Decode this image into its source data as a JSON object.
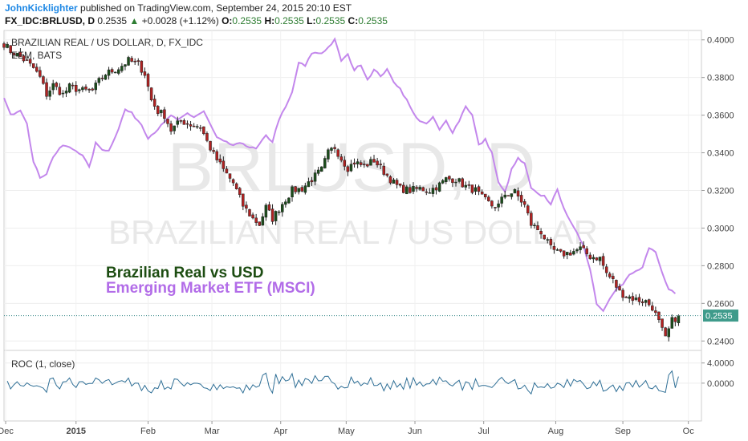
{
  "header": {
    "author": "JohnKicklighter",
    "published": "published on TradingView.com, September 24, 2015 20:10 EST",
    "symbol": "FX_IDC:BRLUSD, D",
    "last": "0.2535",
    "arrow": "▲",
    "change": "+0.0028 (+1.12%)",
    "o_label": "O:",
    "o_value": "0.2535",
    "h_label": "H:",
    "h_value": "0.2535",
    "l_label": "L:",
    "l_value": "0.2535",
    "c_label": "C:",
    "c_value": "0.2535"
  },
  "chart_data": [
    {
      "type": "candlestick",
      "title": "BRAZILIAN REAL / US DOLLAR, D, FX_IDC",
      "overlay_legend": "EEM, BATS",
      "watermark_line1": "BRLUSD, D",
      "watermark_line2": "BRAZILIAN REAL / US DOLLAR",
      "annotation_1": "Brazilian Real vs USD",
      "annotation_2": "Emerging Market ETF (MSCI)",
      "colors": {
        "brl": "#1b4d1b",
        "eem": "#c387ec",
        "up": "#2e7d32",
        "down": "#b22222"
      },
      "ylim": [
        0.235,
        0.405
      ],
      "y_ticks": [
        "0.4000",
        "0.3800",
        "0.3600",
        "0.3400",
        "0.3200",
        "0.3000",
        "0.2800",
        "0.2600",
        "0.2400"
      ],
      "last_price_label": "0.2535",
      "last_price": 0.2535,
      "x_ticks": [
        "Dec",
        "2015",
        "Feb",
        "Mar",
        "Apr",
        "May",
        "Jun",
        "Jul",
        "Aug",
        "Sep",
        "Oc"
      ],
      "x_tick_pos": [
        0.5,
        22,
        44,
        63.5,
        84.5,
        104.5,
        125.5,
        146.5,
        168.5,
        189,
        209
      ],
      "x_range": [
        0,
        213
      ],
      "n_bars": 207,
      "brl_anchors": [
        [
          0,
          0.398
        ],
        [
          2,
          0.394
        ],
        [
          5,
          0.391
        ],
        [
          9,
          0.385
        ],
        [
          11,
          0.38
        ],
        [
          13,
          0.371
        ],
        [
          15,
          0.376
        ],
        [
          18,
          0.371
        ],
        [
          20,
          0.375
        ],
        [
          24,
          0.373
        ],
        [
          27,
          0.373
        ],
        [
          29,
          0.378
        ],
        [
          31,
          0.382
        ],
        [
          35,
          0.385
        ],
        [
          38,
          0.389
        ],
        [
          41,
          0.387
        ],
        [
          43,
          0.382
        ],
        [
          45,
          0.368
        ],
        [
          47,
          0.362
        ],
        [
          49,
          0.36
        ],
        [
          51,
          0.352
        ],
        [
          54,
          0.357
        ],
        [
          57,
          0.355
        ],
        [
          60,
          0.354
        ],
        [
          62,
          0.346
        ],
        [
          64,
          0.339
        ],
        [
          67,
          0.331
        ],
        [
          70,
          0.324
        ],
        [
          73,
          0.312
        ],
        [
          76,
          0.305
        ],
        [
          78,
          0.302
        ],
        [
          80,
          0.311
        ],
        [
          82,
          0.305
        ],
        [
          85,
          0.313
        ],
        [
          88,
          0.32
        ],
        [
          91,
          0.321
        ],
        [
          94,
          0.326
        ],
        [
          97,
          0.331
        ],
        [
          99,
          0.34
        ],
        [
          101,
          0.343
        ],
        [
          103,
          0.337
        ],
        [
          105,
          0.332
        ],
        [
          107,
          0.335
        ],
        [
          110,
          0.333
        ],
        [
          113,
          0.336
        ],
        [
          116,
          0.33
        ],
        [
          119,
          0.324
        ],
        [
          121,
          0.321
        ],
        [
          124,
          0.32
        ],
        [
          127,
          0.321
        ],
        [
          130,
          0.32
        ],
        [
          133,
          0.323
        ],
        [
          135,
          0.326
        ],
        [
          138,
          0.326
        ],
        [
          141,
          0.322
        ],
        [
          144,
          0.32
        ],
        [
          146,
          0.316
        ],
        [
          149,
          0.312
        ],
        [
          151,
          0.312
        ],
        [
          153,
          0.318
        ],
        [
          156,
          0.319
        ],
        [
          159,
          0.312
        ],
        [
          161,
          0.302
        ],
        [
          164,
          0.298
        ],
        [
          167,
          0.289
        ],
        [
          170,
          0.286
        ],
        [
          173,
          0.287
        ],
        [
          176,
          0.289
        ],
        [
          179,
          0.285
        ],
        [
          182,
          0.284
        ],
        [
          184,
          0.276
        ],
        [
          186,
          0.272
        ],
        [
          188,
          0.266
        ],
        [
          190,
          0.264
        ],
        [
          193,
          0.262
        ],
        [
          196,
          0.261
        ],
        [
          198,
          0.258
        ],
        [
          200,
          0.25
        ],
        [
          202,
          0.241
        ],
        [
          204,
          0.2507
        ],
        [
          206,
          0.2535
        ]
      ],
      "eem_anchors": [
        [
          0,
          0.369
        ],
        [
          2,
          0.36
        ],
        [
          5,
          0.363
        ],
        [
          7,
          0.356
        ],
        [
          9,
          0.335
        ],
        [
          11,
          0.327
        ],
        [
          13,
          0.329
        ],
        [
          15,
          0.338
        ],
        [
          18,
          0.344
        ],
        [
          21,
          0.342
        ],
        [
          24,
          0.339
        ],
        [
          26,
          0.332
        ],
        [
          28,
          0.345
        ],
        [
          30,
          0.342
        ],
        [
          32,
          0.341
        ],
        [
          35,
          0.353
        ],
        [
          37,
          0.363
        ],
        [
          39,
          0.361
        ],
        [
          42,
          0.355
        ],
        [
          44,
          0.348
        ],
        [
          46,
          0.351
        ],
        [
          49,
          0.356
        ],
        [
          51,
          0.36
        ],
        [
          53,
          0.357
        ],
        [
          56,
          0.361
        ],
        [
          58,
          0.359
        ],
        [
          61,
          0.362
        ],
        [
          63,
          0.355
        ],
        [
          65,
          0.348
        ],
        [
          67,
          0.346
        ],
        [
          70,
          0.344
        ],
        [
          73,
          0.345
        ],
        [
          75,
          0.343
        ],
        [
          77,
          0.342
        ],
        [
          80,
          0.349
        ],
        [
          82,
          0.346
        ],
        [
          84,
          0.358
        ],
        [
          86,
          0.364
        ],
        [
          88,
          0.372
        ],
        [
          90,
          0.388
        ],
        [
          92,
          0.386
        ],
        [
          94,
          0.393
        ],
        [
          97,
          0.393
        ],
        [
          99,
          0.396
        ],
        [
          101,
          0.4
        ],
        [
          103,
          0.389
        ],
        [
          105,
          0.392
        ],
        [
          107,
          0.384
        ],
        [
          109,
          0.387
        ],
        [
          111,
          0.379
        ],
        [
          113,
          0.384
        ],
        [
          115,
          0.381
        ],
        [
          117,
          0.384
        ],
        [
          119,
          0.378
        ],
        [
          121,
          0.374
        ],
        [
          123,
          0.368
        ],
        [
          125,
          0.361
        ],
        [
          127,
          0.357
        ],
        [
          129,
          0.355
        ],
        [
          131,
          0.359
        ],
        [
          133,
          0.352
        ],
        [
          135,
          0.357
        ],
        [
          137,
          0.351
        ],
        [
          139,
          0.357
        ],
        [
          141,
          0.365
        ],
        [
          143,
          0.36
        ],
        [
          145,
          0.344
        ],
        [
          147,
          0.347
        ],
        [
          149,
          0.34
        ],
        [
          151,
          0.324
        ],
        [
          153,
          0.319
        ],
        [
          155,
          0.331
        ],
        [
          157,
          0.337
        ],
        [
          159,
          0.334
        ],
        [
          161,
          0.321
        ],
        [
          163,
          0.318
        ],
        [
          165,
          0.317
        ],
        [
          167,
          0.313
        ],
        [
          169,
          0.32
        ],
        [
          171,
          0.311
        ],
        [
          173,
          0.303
        ],
        [
          175,
          0.297
        ],
        [
          177,
          0.291
        ],
        [
          179,
          0.278
        ],
        [
          181,
          0.26
        ],
        [
          183,
          0.256
        ],
        [
          185,
          0.263
        ],
        [
          187,
          0.268
        ],
        [
          189,
          0.27
        ],
        [
          191,
          0.275
        ],
        [
          193,
          0.277
        ],
        [
          195,
          0.279
        ],
        [
          197,
          0.289
        ],
        [
          199,
          0.287
        ],
        [
          201,
          0.276
        ],
        [
          203,
          0.268
        ],
        [
          205,
          0.265
        ]
      ]
    },
    {
      "type": "line",
      "title": "ROC (1, close)",
      "ylim": [
        -7.5,
        6.5
      ],
      "y_ticks": [
        "4.0000",
        "0.0000"
      ],
      "y_tick_values": [
        4,
        0
      ],
      "color": "#2f6f96"
    }
  ]
}
